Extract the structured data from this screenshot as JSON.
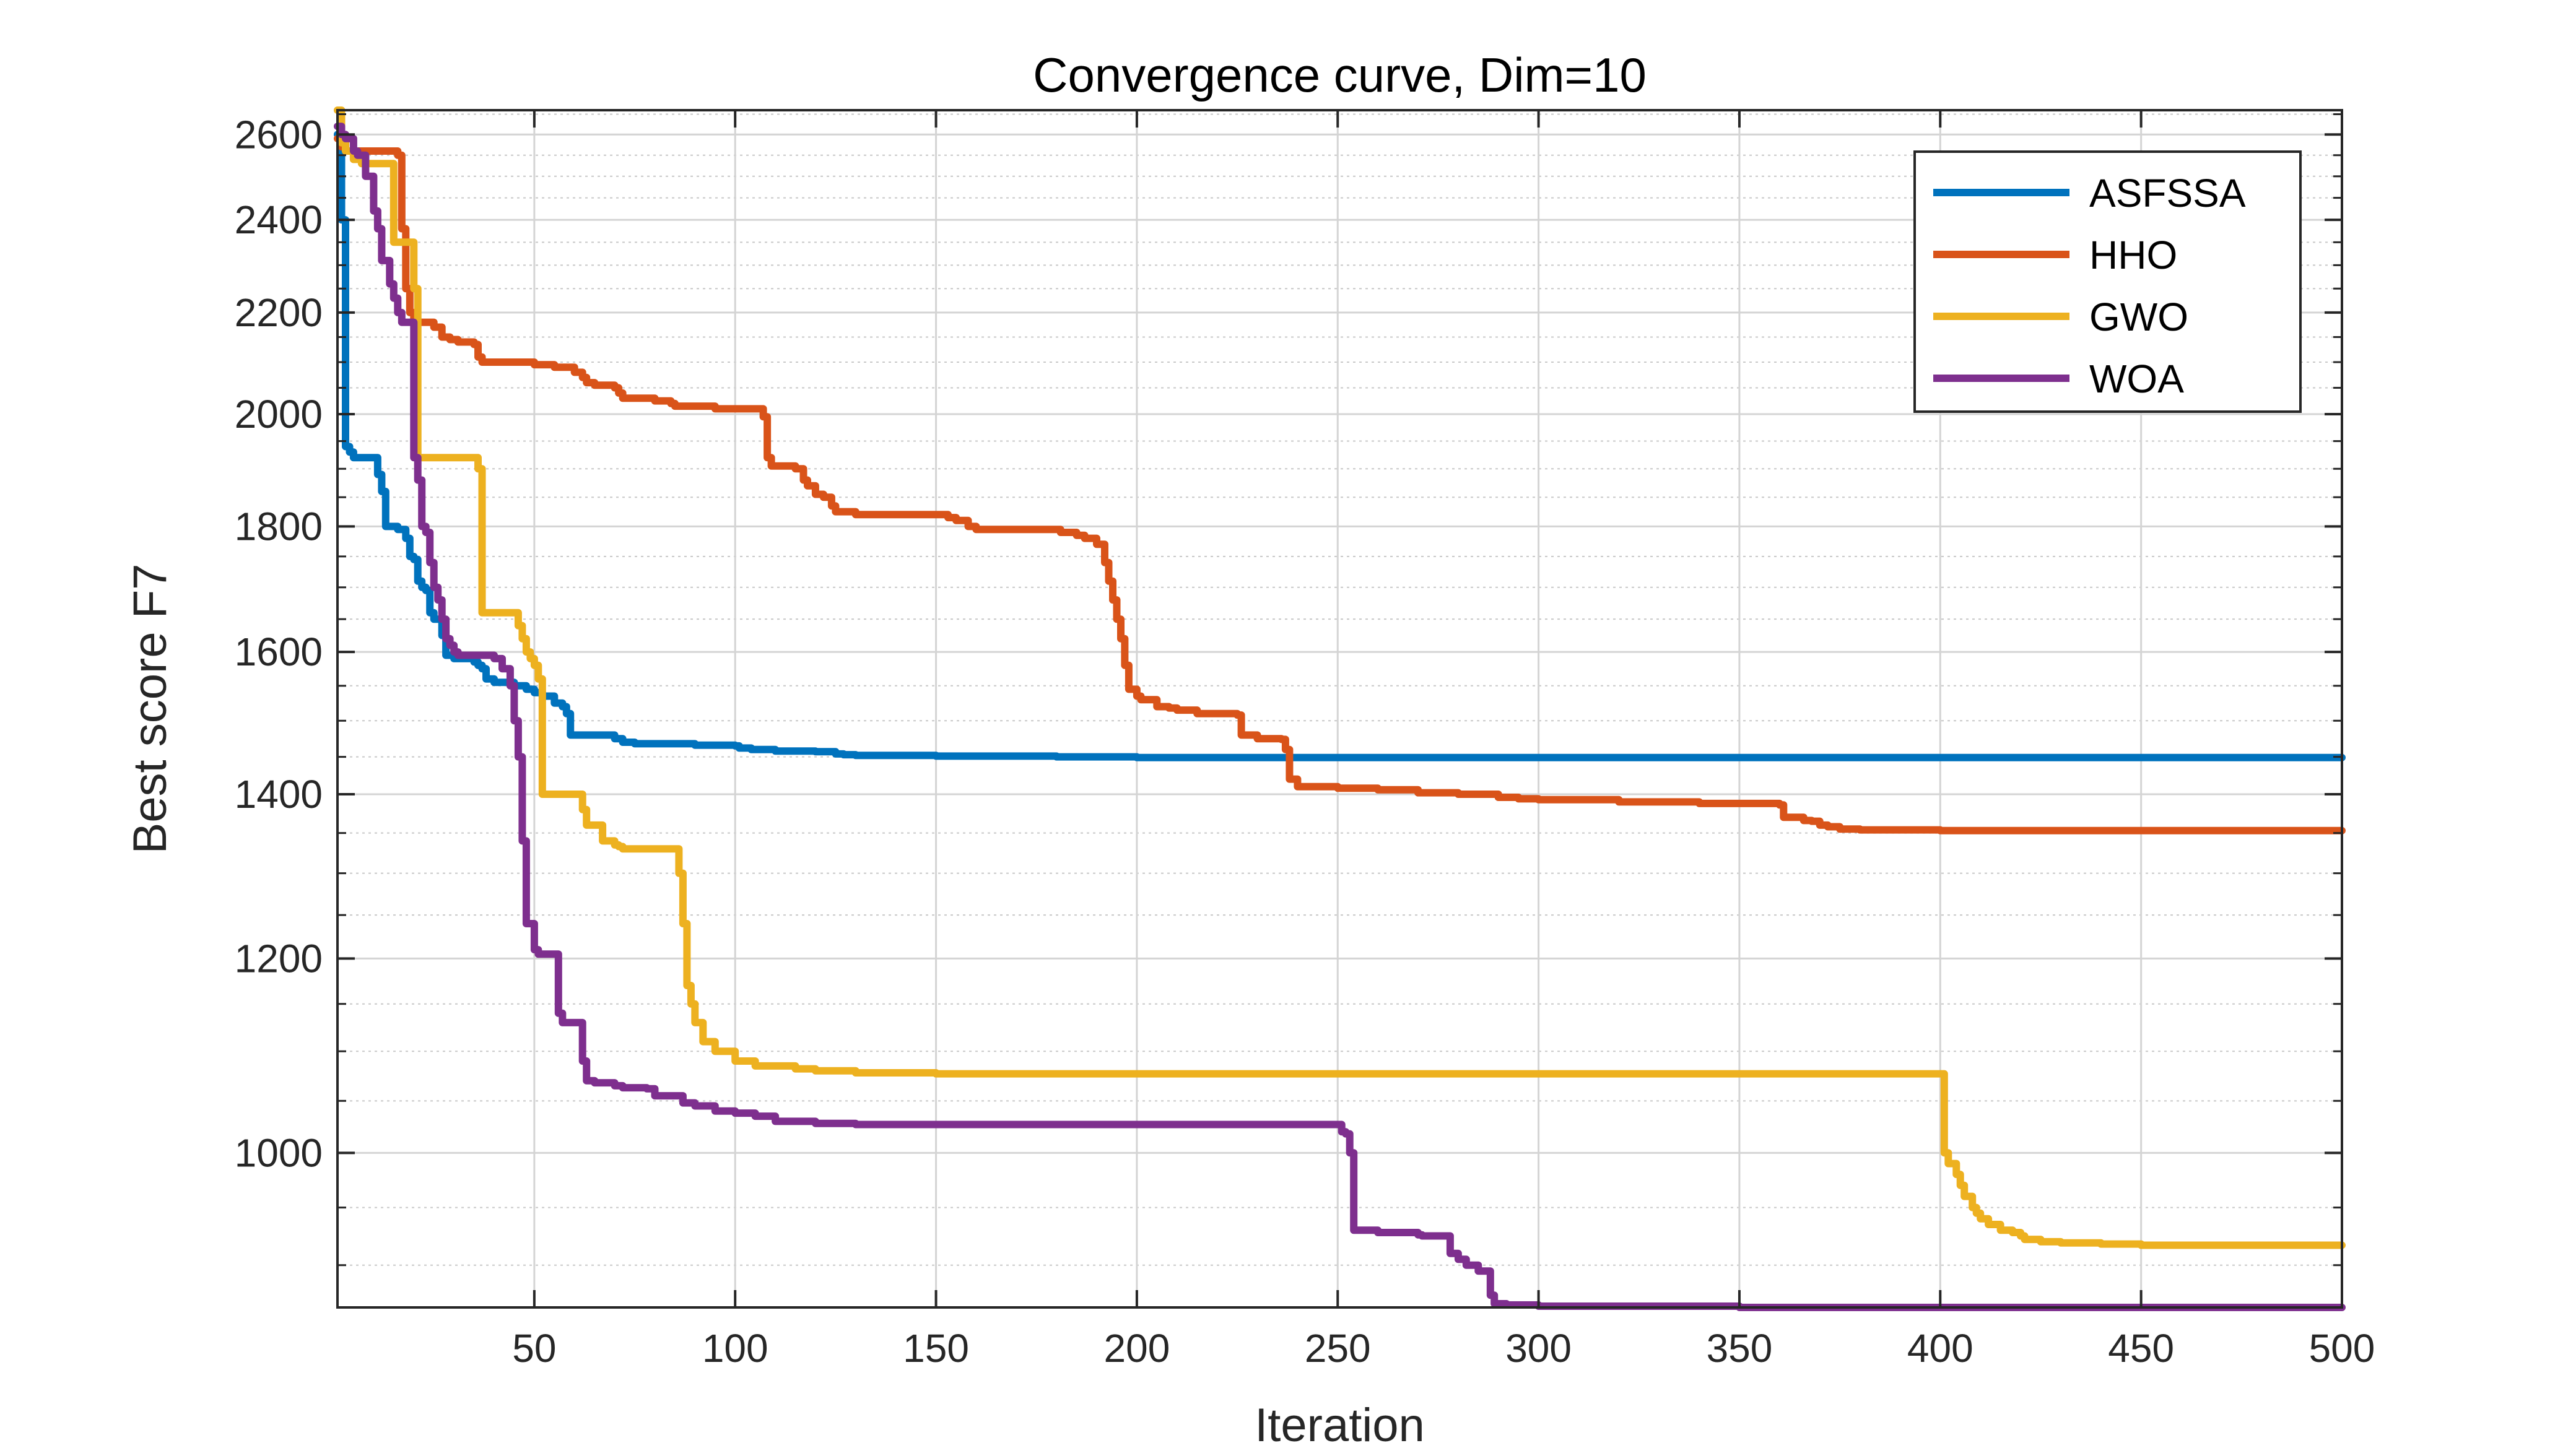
{
  "chart_data": {
    "type": "line",
    "title": "Convergence curve, Dim=10",
    "xlabel": "Iteration",
    "ylabel": "Best score F7",
    "xlim": [
      1,
      500
    ],
    "ylim": [
      865,
      2660
    ],
    "y_scale": "log",
    "grid": true,
    "minor_grid": true,
    "legend_position": "top-right",
    "x_ticks": [
      50,
      100,
      150,
      200,
      250,
      300,
      350,
      400,
      450,
      500
    ],
    "x_tick_labels": [
      "50",
      "100",
      "150",
      "200",
      "250",
      "300",
      "350",
      "400",
      "450",
      "500"
    ],
    "y_ticks": [
      1000,
      1200,
      1400,
      1600,
      1800,
      2000,
      2200,
      2400,
      2600
    ],
    "y_tick_labels": [
      "1000",
      "1200",
      "1400",
      "1600",
      "1800",
      "2000",
      "2200",
      "2400",
      "2600"
    ],
    "series": [
      {
        "name": "ASFSSA",
        "color": "#0072BD",
        "x": [
          1,
          2,
          3,
          4,
          5,
          10,
          11,
          12,
          13,
          16,
          18,
          19,
          20,
          21,
          22,
          23,
          24,
          25,
          27,
          28,
          30,
          35,
          36,
          37,
          38,
          40,
          45,
          48,
          50,
          52,
          55,
          57,
          58,
          59,
          60,
          70,
          72,
          75,
          80,
          90,
          100,
          101,
          104,
          110,
          120,
          125,
          127,
          130,
          150,
          180,
          200,
          500
        ],
        "y": [
          2600,
          2400,
          1940,
          1930,
          1920,
          1920,
          1890,
          1860,
          1800,
          1795,
          1780,
          1750,
          1745,
          1710,
          1700,
          1695,
          1660,
          1650,
          1625,
          1595,
          1590,
          1585,
          1580,
          1575,
          1560,
          1555,
          1550,
          1545,
          1540,
          1535,
          1525,
          1520,
          1510,
          1480,
          1480,
          1475,
          1470,
          1468,
          1468,
          1466,
          1465,
          1462,
          1460,
          1458,
          1457,
          1454,
          1453,
          1452,
          1451,
          1450,
          1449,
          1449
        ]
      },
      {
        "name": "HHO",
        "color": "#D95319",
        "x": [
          1,
          2,
          3,
          5,
          10,
          16,
          17,
          18,
          19,
          20,
          25,
          27,
          28,
          29,
          30,
          31,
          32,
          35,
          36,
          37,
          38,
          40,
          45,
          48,
          50,
          55,
          59,
          60,
          62,
          63,
          65,
          70,
          71,
          72,
          80,
          84,
          85,
          90,
          95,
          100,
          106,
          107,
          108,
          109,
          115,
          117,
          118,
          120,
          122,
          124,
          125,
          130,
          150,
          153,
          155,
          158,
          160,
          180,
          181,
          185,
          187,
          190,
          192,
          193,
          194,
          195,
          196,
          197,
          198,
          200,
          201,
          205,
          208,
          210,
          215,
          225,
          226,
          230,
          236,
          237,
          238,
          240,
          250,
          260,
          270,
          280,
          290,
          295,
          300,
          320,
          340,
          360,
          361,
          366,
          368,
          370,
          372,
          375,
          380,
          390,
          400,
          500
        ],
        "y": [
          2590,
          2570,
          2560,
          2560,
          2560,
          2550,
          2380,
          2250,
          2200,
          2180,
          2170,
          2150,
          2150,
          2145,
          2145,
          2140,
          2140,
          2135,
          2110,
          2100,
          2100,
          2100,
          2100,
          2100,
          2095,
          2090,
          2090,
          2080,
          2070,
          2060,
          2055,
          2050,
          2040,
          2030,
          2025,
          2020,
          2015,
          2015,
          2010,
          2010,
          2010,
          1995,
          1920,
          1905,
          1900,
          1880,
          1870,
          1855,
          1850,
          1835,
          1825,
          1820,
          1820,
          1815,
          1810,
          1800,
          1795,
          1795,
          1790,
          1785,
          1780,
          1770,
          1740,
          1710,
          1680,
          1650,
          1620,
          1580,
          1545,
          1535,
          1530,
          1520,
          1518,
          1515,
          1510,
          1508,
          1480,
          1475,
          1474,
          1460,
          1420,
          1410,
          1408,
          1406,
          1402,
          1400,
          1396,
          1394,
          1393,
          1390,
          1388,
          1386,
          1370,
          1366,
          1365,
          1360,
          1358,
          1355,
          1354,
          1354,
          1353,
          1353
        ]
      },
      {
        "name": "GWO",
        "color": "#EDB120",
        "x": [
          1,
          2,
          3,
          5,
          7,
          10,
          15,
          16,
          17,
          18,
          20,
          21,
          25,
          26,
          27,
          28,
          29,
          35,
          36,
          37,
          38,
          39,
          45,
          46,
          47,
          48,
          49,
          50,
          51,
          52,
          55,
          56,
          57,
          58,
          60,
          62,
          63,
          65,
          67,
          70,
          71,
          72,
          75,
          80,
          85,
          86,
          87,
          88,
          89,
          90,
          92,
          95,
          100,
          105,
          110,
          115,
          120,
          130,
          150,
          200,
          300,
          380,
          400,
          401,
          402,
          404,
          405,
          406,
          408,
          409,
          410,
          412,
          415,
          418,
          420,
          421,
          425,
          430,
          440,
          450,
          500
        ],
        "y": [
          2660,
          2580,
          2560,
          2540,
          2530,
          2530,
          2350,
          2350,
          2350,
          2350,
          2250,
          1920,
          1920,
          1920,
          1920,
          1920,
          1920,
          1920,
          1900,
          1660,
          1660,
          1660,
          1660,
          1640,
          1620,
          1600,
          1590,
          1580,
          1560,
          1400,
          1400,
          1400,
          1400,
          1400,
          1400,
          1380,
          1360,
          1360,
          1340,
          1335,
          1333,
          1330,
          1330,
          1330,
          1330,
          1300,
          1240,
          1170,
          1150,
          1130,
          1110,
          1100,
          1090,
          1085,
          1085,
          1082,
          1080,
          1078,
          1077,
          1077,
          1077,
          1077,
          1077,
          1000,
          990,
          980,
          970,
          960,
          950,
          945,
          940,
          935,
          930,
          928,
          925,
          922,
          920,
          919,
          918,
          917,
          917
        ]
      },
      {
        "name": "WOA",
        "color": "#7E2F8E",
        "x": [
          1,
          2,
          3,
          5,
          6,
          8,
          10,
          11,
          12,
          14,
          15,
          16,
          17,
          20,
          21,
          22,
          23,
          24,
          25,
          26,
          27,
          28,
          29,
          30,
          31,
          35,
          40,
          42,
          44,
          45,
          46,
          47,
          48,
          50,
          51,
          52,
          55,
          56,
          57,
          58,
          60,
          62,
          63,
          65,
          70,
          72,
          78,
          80,
          85,
          87,
          90,
          95,
          100,
          105,
          110,
          120,
          130,
          150,
          200,
          250,
          251,
          252,
          253,
          254,
          260,
          270,
          271,
          278,
          280,
          282,
          285,
          288,
          289,
          290,
          292,
          295,
          300,
          350,
          500
        ],
        "y": [
          2620,
          2600,
          2590,
          2560,
          2550,
          2500,
          2420,
          2380,
          2310,
          2260,
          2230,
          2200,
          2180,
          1920,
          1880,
          1800,
          1790,
          1740,
          1700,
          1680,
          1650,
          1620,
          1610,
          1600,
          1595,
          1595,
          1590,
          1575,
          1550,
          1500,
          1450,
          1340,
          1240,
          1210,
          1205,
          1205,
          1205,
          1140,
          1130,
          1130,
          1130,
          1090,
          1070,
          1068,
          1065,
          1063,
          1062,
          1055,
          1055,
          1048,
          1045,
          1040,
          1038,
          1035,
          1030,
          1028,
          1027,
          1027,
          1027,
          1027,
          1020,
          1018,
          1000,
          930,
          928,
          926,
          925,
          910,
          905,
          900,
          895,
          875,
          868,
          868,
          867,
          867,
          866,
          865,
          865
        ]
      }
    ]
  }
}
